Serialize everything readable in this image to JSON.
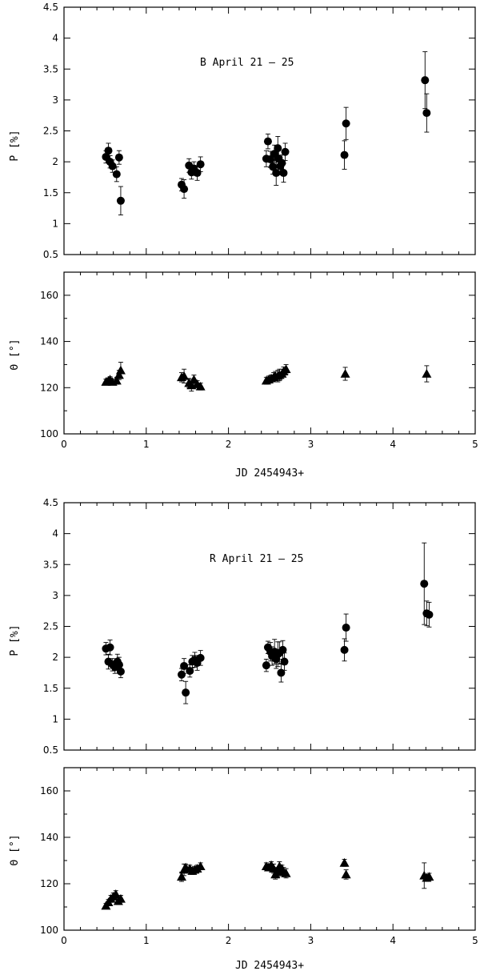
{
  "figure": {
    "xlabel": "JD 2454943+"
  },
  "chart_data": [
    {
      "type": "scatter",
      "panel": "B-polarization",
      "annotation": "B   April 21 – 25",
      "ylabel": "P [%]",
      "xlim": [
        0,
        5
      ],
      "ylim": [
        0.5,
        4.5
      ],
      "xticks": [
        0,
        1,
        2,
        3,
        4,
        5
      ],
      "xticks_labeled": false,
      "yticks": [
        0.5,
        1,
        1.5,
        2,
        2.5,
        3,
        3.5,
        4,
        4.5
      ],
      "ytick_labels": [
        "0.5",
        "1",
        "1.5",
        "2",
        "2.5",
        "3",
        "3.5",
        "4",
        "4.5"
      ],
      "marker": "circle",
      "series": [
        {
          "x": [
            0.51,
            0.54,
            0.56,
            0.59,
            0.64,
            0.67,
            0.69,
            1.43,
            1.46,
            1.52,
            1.55,
            1.58,
            1.62,
            1.66,
            2.46,
            2.48,
            2.51,
            2.54,
            2.56,
            2.58,
            2.6,
            2.61,
            2.63,
            2.65,
            2.67,
            2.69,
            3.41,
            3.43,
            4.39,
            4.41
          ],
          "y": [
            2.08,
            2.18,
            2.0,
            1.93,
            1.8,
            2.07,
            1.37,
            1.63,
            1.56,
            1.94,
            1.83,
            1.89,
            1.82,
            1.96,
            2.05,
            2.33,
            2.04,
            1.92,
            2.13,
            1.82,
            2.22,
            2.05,
            1.93,
            1.98,
            1.82,
            2.16,
            2.11,
            2.62,
            3.32,
            2.79
          ],
          "err": [
            0.1,
            0.12,
            0.1,
            0.1,
            0.12,
            0.11,
            0.23,
            0.1,
            0.15,
            0.11,
            0.11,
            0.11,
            0.12,
            0.12,
            0.13,
            0.12,
            0.13,
            0.12,
            0.14,
            0.2,
            0.19,
            0.15,
            0.14,
            0.13,
            0.15,
            0.14,
            0.23,
            0.26,
            0.46,
            0.31
          ]
        }
      ]
    },
    {
      "type": "scatter",
      "panel": "B-angle",
      "ylabel": "Θ [°]",
      "xlim": [
        0,
        5
      ],
      "ylim": [
        100,
        170
      ],
      "xticks": [
        0,
        1,
        2,
        3,
        4,
        5
      ],
      "xtick_labels": [
        "0",
        "1",
        "2",
        "3",
        "4",
        "5"
      ],
      "yticks": [
        100,
        120,
        140,
        160
      ],
      "ytick_labels": [
        "100",
        "120",
        "140",
        "160"
      ],
      "minor_yticks": [
        110,
        130,
        150,
        170
      ],
      "xlabel": "JD 2454943+",
      "marker": "triangle",
      "series": [
        {
          "x": [
            0.51,
            0.54,
            0.56,
            0.59,
            0.64,
            0.67,
            0.69,
            1.43,
            1.46,
            1.52,
            1.55,
            1.58,
            1.62,
            1.66,
            2.46,
            2.49,
            2.52,
            2.55,
            2.57,
            2.6,
            2.62,
            2.65,
            2.67,
            2.7,
            3.42,
            4.41
          ],
          "y": [
            122.5,
            123.0,
            123.5,
            122.5,
            123.0,
            125.5,
            127.5,
            124.5,
            125.0,
            122.0,
            121.0,
            123.5,
            121.5,
            120.5,
            123.0,
            123.5,
            124.0,
            124.5,
            125.0,
            125.0,
            125.5,
            126.0,
            127.0,
            128.0,
            126.0,
            126.0
          ],
          "err": [
            1.2,
            1.2,
            1.2,
            1.2,
            1.5,
            2.0,
            3.5,
            2.0,
            3.0,
            2.0,
            2.5,
            2.0,
            1.5,
            1.5,
            1.5,
            1.5,
            1.5,
            2.0,
            2.0,
            2.5,
            2.5,
            2.0,
            2.0,
            2.0,
            2.8,
            3.5
          ]
        }
      ]
    },
    {
      "type": "scatter",
      "panel": "R-polarization",
      "annotation": "R   April 21 – 25",
      "ylabel": "P [%]",
      "xlim": [
        0,
        5
      ],
      "ylim": [
        0.5,
        4.5
      ],
      "xticks": [
        0,
        1,
        2,
        3,
        4,
        5
      ],
      "xticks_labeled": false,
      "yticks": [
        0.5,
        1,
        1.5,
        2,
        2.5,
        3,
        3.5,
        4,
        4.5
      ],
      "ytick_labels": [
        "0.5",
        "1",
        "1.5",
        "2",
        "2.5",
        "3",
        "3.5",
        "4",
        "4.5"
      ],
      "marker": "circle",
      "series": [
        {
          "x": [
            0.51,
            0.54,
            0.56,
            0.59,
            0.62,
            0.65,
            0.67,
            0.69,
            1.43,
            1.46,
            1.48,
            1.53,
            1.56,
            1.59,
            1.62,
            1.66,
            2.46,
            2.48,
            2.51,
            2.53,
            2.56,
            2.58,
            2.6,
            2.62,
            2.64,
            2.66,
            2.68,
            3.41,
            3.43,
            4.38,
            4.41,
            4.44
          ],
          "y": [
            2.14,
            1.93,
            2.16,
            1.88,
            1.84,
            1.93,
            1.88,
            1.77,
            1.72,
            1.86,
            1.43,
            1.78,
            1.93,
            1.96,
            1.91,
            1.99,
            1.87,
            2.16,
            2.09,
            2.02,
            2.09,
            1.97,
            2.05,
            2.07,
            1.75,
            2.12,
            1.93,
            2.12,
            2.48,
            3.19,
            2.71,
            2.69
          ],
          "err": [
            0.1,
            0.12,
            0.12,
            0.1,
            0.1,
            0.12,
            0.12,
            0.1,
            0.1,
            0.12,
            0.18,
            0.1,
            0.1,
            0.12,
            0.12,
            0.12,
            0.1,
            0.1,
            0.15,
            0.15,
            0.2,
            0.15,
            0.2,
            0.18,
            0.15,
            0.15,
            0.14,
            0.18,
            0.22,
            0.66,
            0.2,
            0.2
          ]
        }
      ]
    },
    {
      "type": "scatter",
      "panel": "R-angle",
      "ylabel": "Θ [°]",
      "xlim": [
        0,
        5
      ],
      "ylim": [
        100,
        170
      ],
      "xticks": [
        0,
        1,
        2,
        3,
        4,
        5
      ],
      "xtick_labels": [
        "0",
        "1",
        "2",
        "3",
        "4",
        "5"
      ],
      "yticks": [
        100,
        120,
        140,
        160
      ],
      "ytick_labels": [
        "100",
        "120",
        "140",
        "160"
      ],
      "minor_yticks": [
        110,
        130,
        150,
        170
      ],
      "xlabel": "JD 2454943+",
      "marker": "triangle",
      "series": [
        {
          "x": [
            0.51,
            0.54,
            0.57,
            0.6,
            0.63,
            0.66,
            0.69,
            1.43,
            1.46,
            1.48,
            1.53,
            1.56,
            1.59,
            1.62,
            1.66,
            2.46,
            2.49,
            2.52,
            2.55,
            2.57,
            2.6,
            2.62,
            2.65,
            2.67,
            2.7,
            3.41,
            3.43,
            4.38,
            4.41,
            4.44
          ],
          "y": [
            110.5,
            112.0,
            113.5,
            114.5,
            115.5,
            112.5,
            113.5,
            123.0,
            126.0,
            127.0,
            126.5,
            125.5,
            126.0,
            126.5,
            127.5,
            127.5,
            127.0,
            128.0,
            126.5,
            124.0,
            125.0,
            127.5,
            126.5,
            125.0,
            124.5,
            129.0,
            124.0,
            123.5,
            122.5,
            123.0
          ],
          "err": [
            1.0,
            1.2,
            1.5,
            1.5,
            1.5,
            1.5,
            1.5,
            2.0,
            2.5,
            1.5,
            1.5,
            1.5,
            1.5,
            1.5,
            1.5,
            1.5,
            1.5,
            1.5,
            2.0,
            2.0,
            2.0,
            2.0,
            1.5,
            2.0,
            2.0,
            1.5,
            2.0,
            5.5,
            1.5,
            1.5
          ]
        }
      ]
    }
  ]
}
